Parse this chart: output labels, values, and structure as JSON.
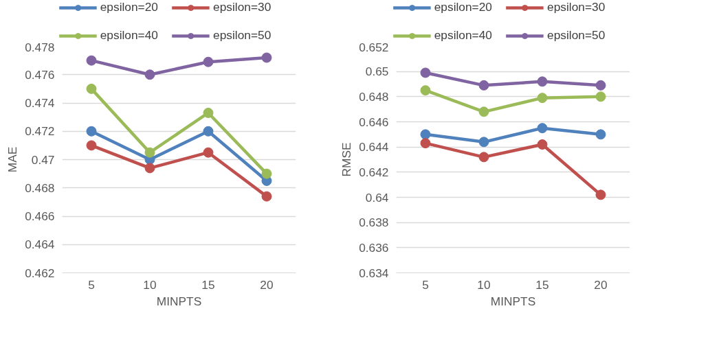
{
  "chart_data": [
    {
      "type": "line",
      "xlabel": "MINPTS",
      "ylabel": "MAE",
      "categories": [
        "5",
        "10",
        "15",
        "20"
      ],
      "ylim": [
        0.462,
        0.478
      ],
      "yticks": [
        0.462,
        0.464,
        0.466,
        0.468,
        0.47,
        0.472,
        0.474,
        0.476,
        0.478
      ],
      "grid": "y",
      "legend": "top",
      "marker": "circle",
      "line_style": "solid",
      "series": [
        {
          "name": "epsilon=20",
          "color": "#4f81bd",
          "values": [
            0.472,
            0.47,
            0.472,
            0.4685
          ]
        },
        {
          "name": "epsilon=30",
          "color": "#c0504d",
          "values": [
            0.471,
            0.4694,
            0.4705,
            0.4674
          ]
        },
        {
          "name": "epsilon=40",
          "color": "#9bbb59",
          "values": [
            0.475,
            0.4705,
            0.4733,
            0.469
          ]
        },
        {
          "name": "epsilon=50",
          "color": "#8064a2",
          "values": [
            0.477,
            0.476,
            0.4769,
            0.4772
          ]
        }
      ]
    },
    {
      "type": "line",
      "xlabel": "MINPTS",
      "ylabel": "RMSE",
      "categories": [
        "5",
        "10",
        "15",
        "20"
      ],
      "ylim": [
        0.634,
        0.652
      ],
      "yticks": [
        0.634,
        0.636,
        0.638,
        0.64,
        0.642,
        0.644,
        0.646,
        0.648,
        0.65,
        0.652
      ],
      "grid": "y",
      "legend": "top",
      "marker": "circle",
      "line_style": "solid",
      "series": [
        {
          "name": "epsilon=20",
          "color": "#4f81bd",
          "values": [
            0.645,
            0.6444,
            0.6455,
            0.645
          ]
        },
        {
          "name": "epsilon=30",
          "color": "#c0504d",
          "values": [
            0.6443,
            0.6432,
            0.6442,
            0.6402
          ]
        },
        {
          "name": "epsilon=40",
          "color": "#9bbb59",
          "values": [
            0.6485,
            0.6468,
            0.6479,
            0.648
          ]
        },
        {
          "name": "epsilon=50",
          "color": "#8064a2",
          "values": [
            0.6499,
            0.6489,
            0.6492,
            0.6489
          ]
        }
      ]
    }
  ]
}
